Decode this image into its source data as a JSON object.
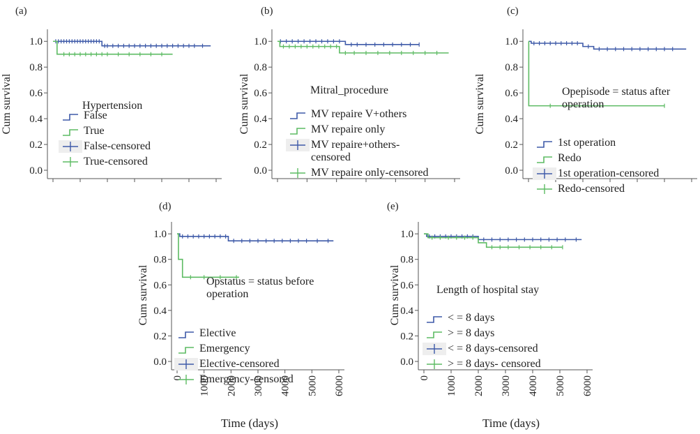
{
  "colors": {
    "series_a": "#3e5aa8",
    "series_b": "#5dbb63",
    "axis": "#555555"
  },
  "chart_data": [
    {
      "panel": "(a)",
      "type": "line",
      "xlabel": "",
      "ylabel": "Cum survival",
      "xlim": [
        0,
        6000
      ],
      "ylim": [
        0,
        1.05
      ],
      "yticks": [
        "0.0",
        "0.2",
        "0.4",
        "0.6",
        "0.8",
        "1.0"
      ],
      "xticks": [],
      "legend_title": "Hypertension",
      "legend_placement": "center-left",
      "legend": [
        "False",
        "True",
        "False-censored",
        "True-censored"
      ],
      "series": [
        {
          "name": "False",
          "x": [
            0,
            1800,
            1800,
            5800
          ],
          "y": [
            1.0,
            1.0,
            0.965,
            0.965
          ],
          "censored_x": [
            100,
            200,
            300,
            400,
            500,
            600,
            700,
            800,
            900,
            1000,
            1100,
            1200,
            1300,
            1400,
            1500,
            1600,
            1700,
            1900,
            2000,
            2200,
            2400,
            2600,
            2800,
            3000,
            3200,
            3400,
            3600,
            3800,
            4000,
            4200,
            4400,
            4600,
            4800,
            5000,
            5200,
            5500
          ]
        },
        {
          "name": "True",
          "x": [
            0,
            150,
            150,
            4400
          ],
          "y": [
            1.0,
            1.0,
            0.9,
            0.9
          ],
          "censored_x": [
            400,
            600,
            800,
            1000,
            1200,
            1400,
            1600,
            1800,
            2000,
            2400,
            2800,
            3200,
            3600,
            4000
          ]
        }
      ]
    },
    {
      "panel": "(b)",
      "type": "line",
      "xlabel": "",
      "ylabel": "Cum survival",
      "xlim": [
        0,
        6000
      ],
      "ylim": [
        0,
        1.05
      ],
      "yticks": [
        "0.0",
        "0.2",
        "0.4",
        "0.6",
        "0.8",
        "1.0"
      ],
      "xticks": [],
      "legend_title": "Mitral_procedure",
      "legend_placement": "center",
      "legend": [
        "MV repaire V+others",
        "MV repaire only",
        "MV repaire+others-\ncensored",
        "MV repaire only-censored"
      ],
      "series": [
        {
          "name": "MV repaire V+others",
          "x": [
            0,
            2300,
            2300,
            4800
          ],
          "y": [
            1.0,
            1.0,
            0.975,
            0.975
          ],
          "censored_x": [
            100,
            300,
            500,
            700,
            900,
            1100,
            1300,
            1500,
            1700,
            1900,
            2100,
            2500,
            2700,
            3000,
            3300,
            3600,
            3900,
            4200,
            4500,
            4800
          ]
        },
        {
          "name": "MV repaire only",
          "x": [
            0,
            80,
            80,
            2100,
            2100,
            5800
          ],
          "y": [
            1.0,
            1.0,
            0.96,
            0.96,
            0.91,
            0.91
          ],
          "censored_x": [
            200,
            400,
            600,
            800,
            1000,
            1200,
            1400,
            1600,
            1800,
            2000,
            2300,
            2600,
            3000,
            3400,
            3800,
            4200,
            4600,
            5000,
            5400
          ]
        }
      ]
    },
    {
      "panel": "(c)",
      "type": "line",
      "xlabel": "",
      "ylabel": "Cum survival",
      "xlim": [
        0,
        6000
      ],
      "ylim": [
        0,
        1.05
      ],
      "yticks": [
        "0.0",
        "0.2",
        "0.4",
        "0.6",
        "0.8",
        "1.0"
      ],
      "xticks": [],
      "legend_title": "Opepisode = status after\noperation",
      "legend_placement": "right",
      "legend": [
        "1st operation",
        "Redo",
        "1st operation-censored",
        "Redo-censored"
      ],
      "series": [
        {
          "name": "1st operation",
          "x": [
            0,
            100,
            100,
            2000,
            2000,
            2400,
            2400,
            5800
          ],
          "y": [
            1.0,
            1.0,
            0.985,
            0.985,
            0.96,
            0.96,
            0.94,
            0.94
          ],
          "censored_x": [
            200,
            400,
            600,
            800,
            1000,
            1200,
            1400,
            1600,
            1800,
            2200,
            2600,
            2900,
            3200,
            3500,
            3800,
            4100,
            4400,
            4700,
            5000,
            5300
          ]
        },
        {
          "name": "Redo",
          "x": [
            0,
            10,
            10,
            5000
          ],
          "y": [
            1.0,
            1.0,
            0.5,
            0.5
          ],
          "censored_x": [
            800,
            5000
          ]
        }
      ]
    },
    {
      "panel": "(d)",
      "type": "line",
      "xlabel": "",
      "ylabel": "Cum survival",
      "xlim": [
        0,
        6000
      ],
      "ylim": [
        0,
        1.05
      ],
      "yticks": [
        "0.0",
        "0.2",
        "0.4",
        "0.6",
        "0.8",
        "1.0"
      ],
      "xticks": [
        "0",
        "1000",
        "2000",
        "3000",
        "4000",
        "5000",
        "6000"
      ],
      "legend_title": "Opstatus = status before\noperation",
      "legend_placement": "bottom-right",
      "legend": [
        "Elective",
        "Emergency",
        "Elective-censored",
        "Emergency-censored"
      ],
      "series": [
        {
          "name": "Elective",
          "x": [
            0,
            100,
            100,
            1900,
            1900,
            5800
          ],
          "y": [
            1.0,
            1.0,
            0.98,
            0.98,
            0.945,
            0.945
          ],
          "censored_x": [
            200,
            400,
            600,
            800,
            1000,
            1200,
            1400,
            1600,
            1800,
            2100,
            2400,
            2700,
            3000,
            3300,
            3600,
            3900,
            4200,
            4500,
            4800,
            5200,
            5600
          ]
        },
        {
          "name": "Emergency",
          "x": [
            0,
            50,
            50,
            200,
            200,
            2300
          ],
          "y": [
            1.0,
            1.0,
            0.8,
            0.8,
            0.66,
            0.66
          ],
          "censored_x": [
            500,
            1000,
            1600,
            2200
          ]
        }
      ]
    },
    {
      "panel": "(e)",
      "type": "line",
      "xlabel": "",
      "ylabel": "Cum survival",
      "xlim": [
        0,
        6000
      ],
      "ylim": [
        0,
        1.05
      ],
      "yticks": [
        "0.0",
        "0.2",
        "0.4",
        "0.6",
        "0.8",
        "1.0"
      ],
      "xticks": [
        "0",
        "1000",
        "2000",
        "3000",
        "4000",
        "5000",
        "6000"
      ],
      "legend_title": "Length of hospital stay",
      "legend_placement": "center",
      "legend": [
        "< = 8 days",
        "> = 8 days",
        "< = 8 days-censored",
        "> = 8 days- censored"
      ],
      "series": [
        {
          "name": "< = 8 days",
          "x": [
            0,
            100,
            100,
            2000,
            2000,
            5800
          ],
          "y": [
            1.0,
            1.0,
            0.98,
            0.98,
            0.955,
            0.955
          ],
          "censored_x": [
            200,
            400,
            600,
            800,
            1000,
            1200,
            1400,
            1600,
            1800,
            2200,
            2500,
            2800,
            3100,
            3400,
            3700,
            4000,
            4300,
            4600,
            4900,
            5200,
            5600
          ]
        },
        {
          "name": "> = 8 days",
          "x": [
            0,
            150,
            150,
            2000,
            2000,
            2300,
            2300,
            5100
          ],
          "y": [
            1.0,
            1.0,
            0.97,
            0.97,
            0.93,
            0.93,
            0.895,
            0.895
          ],
          "censored_x": [
            300,
            600,
            900,
            1200,
            1500,
            1800,
            2500,
            2800,
            3100,
            3500,
            3900,
            4300,
            4700,
            5100
          ]
        }
      ]
    }
  ],
  "figure": {
    "xlabel_d": "Time (days)",
    "xlabel_e": "Time (days)"
  }
}
